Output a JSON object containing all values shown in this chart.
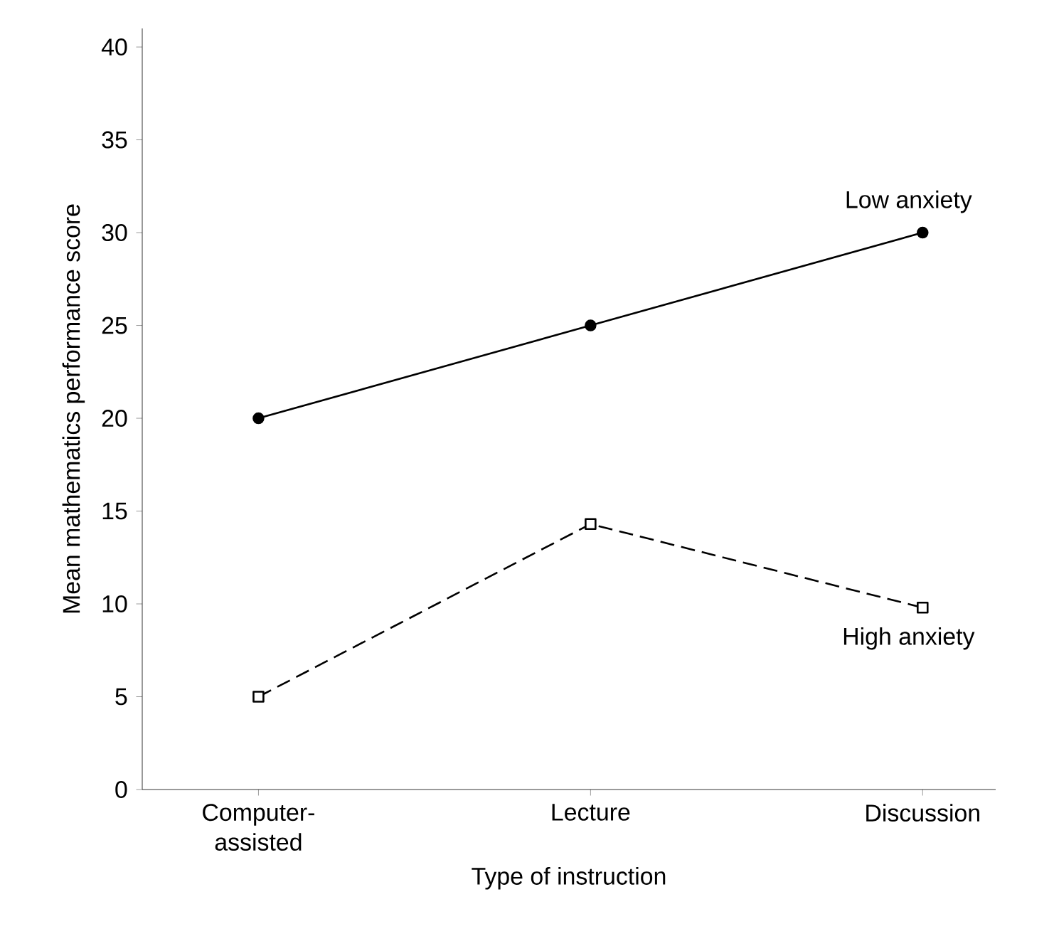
{
  "chart_data": {
    "type": "line",
    "xlabel": "Type of instruction",
    "ylabel": "Mean mathematics performance score",
    "categories": [
      "Computer-assisted",
      "Lecture",
      "Discussion"
    ],
    "series": [
      {
        "name": "Low anxiety",
        "color": "#000000",
        "values": [
          20,
          25,
          30
        ],
        "marker": "circle",
        "line_style": "solid"
      },
      {
        "name": "High anxiety",
        "color": "#000000",
        "values": [
          5,
          14.3,
          9.8
        ],
        "marker": "square",
        "line_style": "dashed"
      }
    ],
    "ylim": [
      0,
      41
    ],
    "yticks": [
      0,
      5,
      10,
      15,
      20,
      25,
      30,
      35,
      40
    ],
    "grid": false,
    "legend": false
  }
}
